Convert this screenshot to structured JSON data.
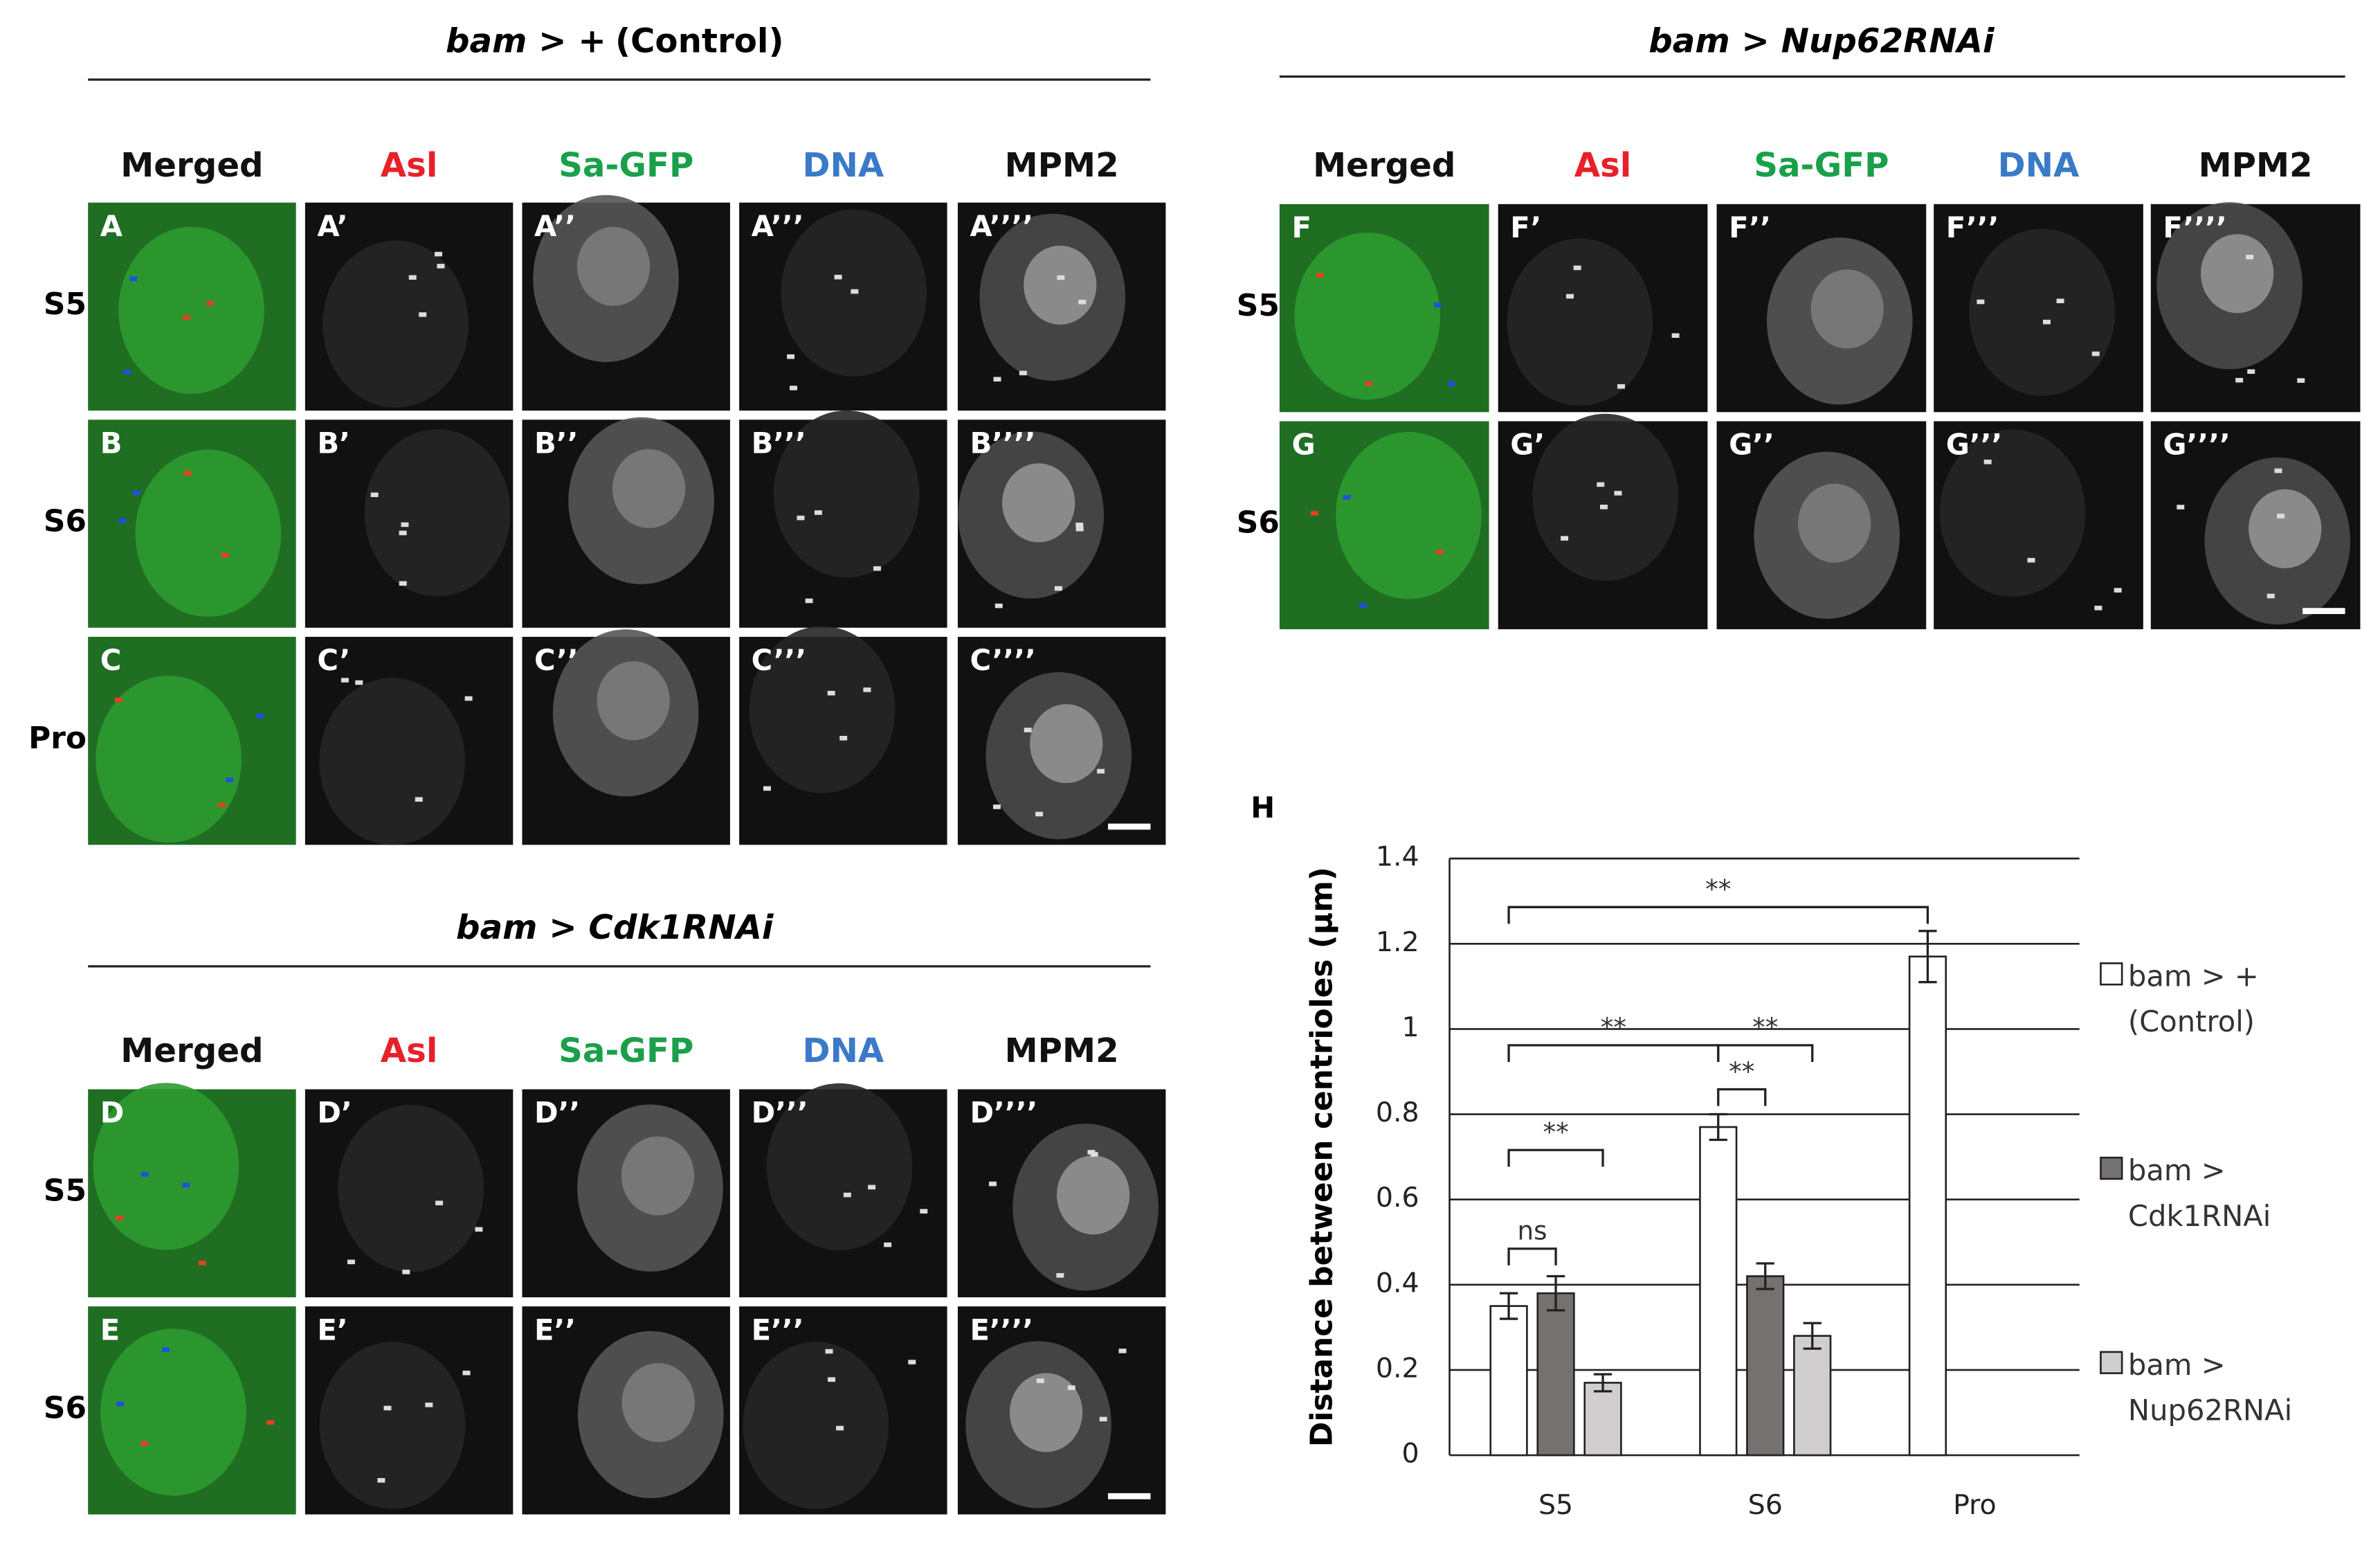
{
  "groups": [
    {
      "title": [
        "bam > +",
        "(Control)"
      ],
      "columns": [
        "Merged",
        "Asl",
        "Sa-GFP",
        "DNA",
        "MPM2"
      ],
      "rows": [
        {
          "label": "S5",
          "panels": [
            "A",
            "A’",
            "A’’",
            "A’’’",
            "A’’’’"
          ]
        },
        {
          "label": "S6",
          "panels": [
            "B",
            "B’",
            "B’’",
            "B’’’",
            "B’’’’"
          ]
        },
        {
          "label": "Pro",
          "panels": [
            "C",
            "C’",
            "C’’",
            "C’’’",
            "C’’’’"
          ]
        }
      ]
    },
    {
      "title": [
        "bam > Cdk1RNAi"
      ],
      "columns": [
        "Merged",
        "Asl",
        "Sa-GFP",
        "DNA",
        "MPM2"
      ],
      "rows": [
        {
          "label": "S5",
          "panels": [
            "D",
            "D’",
            "D’’",
            "D’’’",
            "D’’’’"
          ]
        },
        {
          "label": "S6",
          "panels": [
            "E",
            "E’",
            "E’’",
            "E’’’",
            "E’’’’"
          ]
        }
      ]
    },
    {
      "title": [
        "bam > Nup62RNAi"
      ],
      "columns": [
        "Merged",
        "Asl",
        "Sa-GFP",
        "DNA",
        "MPM2"
      ],
      "rows": [
        {
          "label": "S5",
          "panels": [
            "F",
            "F’",
            "F’’",
            "F’’’",
            "F’’’’"
          ]
        },
        {
          "label": "S6",
          "panels": [
            "G",
            "G’",
            "G’’",
            "G’’’",
            "G’’’’"
          ]
        }
      ]
    }
  ],
  "chart_data": {
    "type": "bar",
    "panel_label": "H",
    "ylabel": "Distance between centrioles (µm)",
    "categories": [
      "S5",
      "S6",
      "Pro"
    ],
    "series": [
      {
        "name": "bam > + (Control)",
        "color": "#ffffff",
        "values": [
          0.35,
          0.77,
          1.17
        ],
        "errors": [
          0.03,
          0.03,
          0.06
        ]
      },
      {
        "name": "bam > Cdk1RNAi",
        "color": "#767171",
        "values": [
          0.38,
          0.42,
          null
        ],
        "errors": [
          0.04,
          0.03,
          null
        ]
      },
      {
        "name": "bam > Nup62RNAi",
        "color": "#d0cece",
        "values": [
          0.17,
          0.28,
          null
        ],
        "errors": [
          0.02,
          0.03,
          null
        ]
      }
    ],
    "ylim": [
      0,
      1.4
    ],
    "yticks": [
      0,
      0.2,
      0.4,
      0.6,
      0.8,
      1,
      1.2,
      1.4
    ],
    "grid": true,
    "annotations": [
      "**",
      "**",
      "**",
      "**",
      "**",
      "ns"
    ]
  }
}
